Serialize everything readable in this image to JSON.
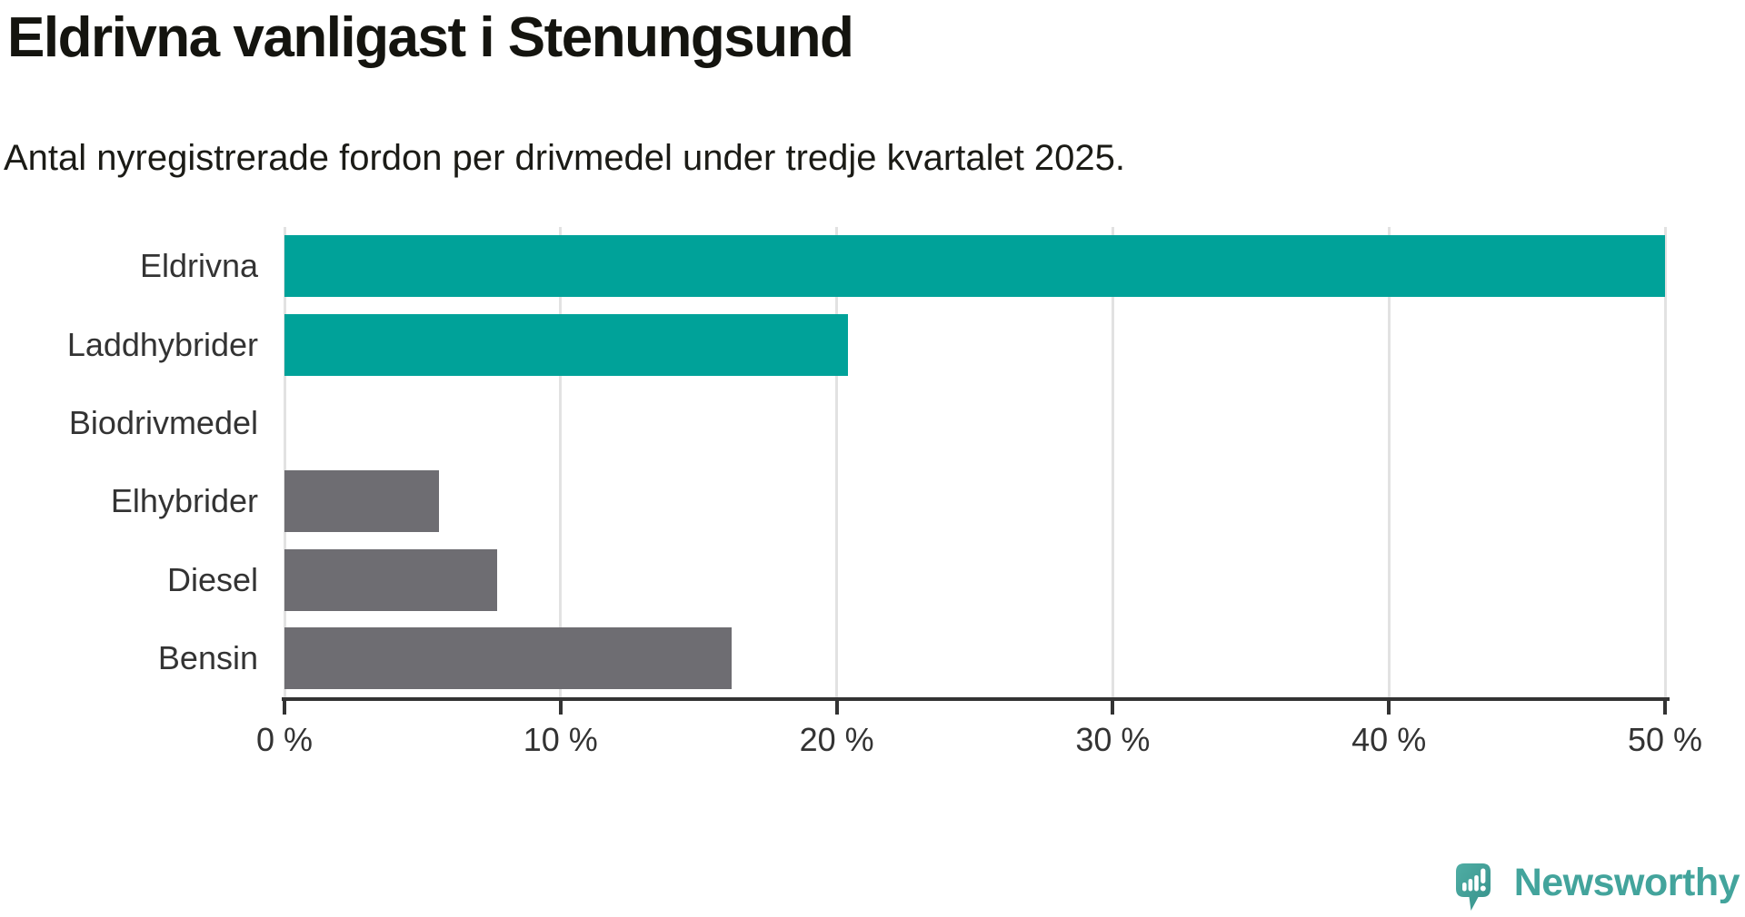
{
  "chart_data": {
    "type": "bar",
    "orientation": "horizontal",
    "title": "Eldrivna vanligast i Stenungsund",
    "subtitle": "Antal nyregistrerade fordon per drivmedel under tredje kvartalet 2025.",
    "categories": [
      "Eldrivna",
      "Laddhybrider",
      "Biodrivmedel",
      "Elhybrider",
      "Diesel",
      "Bensin"
    ],
    "values": [
      50.0,
      20.4,
      0,
      5.6,
      7.7,
      16.2
    ],
    "unit": "%",
    "xlabel": "",
    "ylabel": "",
    "xlim": [
      0,
      50
    ],
    "x_tick_values": [
      0,
      10,
      20,
      30,
      40,
      50
    ],
    "x_ticks": [
      "0 %",
      "10 %",
      "20 %",
      "30 %",
      "40 %",
      "50 %"
    ],
    "grid": true,
    "legend": false,
    "colors": {
      "highlight": "#00a299",
      "default": "#6e6d72",
      "gridline": "#e2e2e2",
      "axis": "#333333",
      "tick_label": "#333333",
      "category_label": "#333333",
      "title": "#14140f"
    },
    "bar_color_keys": [
      "highlight",
      "highlight",
      "default",
      "default",
      "default",
      "default"
    ]
  },
  "footer": {
    "brand": "Newsworthy",
    "brand_color": "#43a49c",
    "logo": {
      "icon": "newsworthy-chart-bubble-icon",
      "gradient_start": "#4fada4",
      "gradient_end": "#37928b",
      "mark_color": "#ffffff"
    }
  }
}
